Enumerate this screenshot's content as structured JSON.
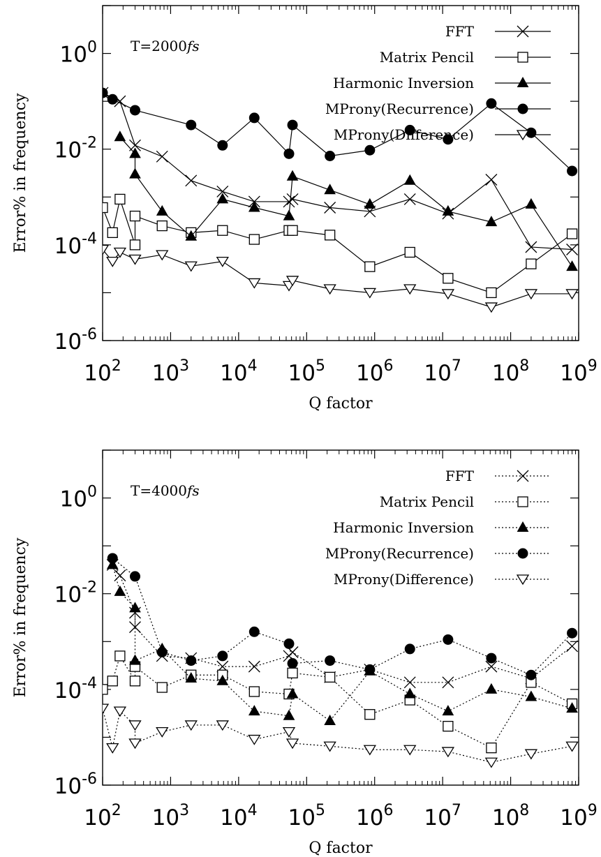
{
  "chart_data": [
    {
      "type": "line",
      "annotation": "T=2000",
      "annotation_italic": "fs",
      "xlabel": "Q factor",
      "ylabel": "Error% in frequency",
      "xscale": "log",
      "yscale": "log",
      "xlim": [
        100,
        1000000000
      ],
      "ylim": [
        1e-06,
        10
      ],
      "line_style": "solid",
      "legend_placement": "top-right",
      "x_ticks": [
        {
          "base": "10",
          "exp": "2"
        },
        {
          "base": "10",
          "exp": "3"
        },
        {
          "base": "10",
          "exp": "4"
        },
        {
          "base": "10",
          "exp": "5"
        },
        {
          "base": "10",
          "exp": "6"
        },
        {
          "base": "10",
          "exp": "7"
        },
        {
          "base": "10",
          "exp": "8"
        },
        {
          "base": "10",
          "exp": "9"
        }
      ],
      "y_ticks": [
        {
          "base": "10",
          "exp": "-6"
        },
        {
          "base": "10",
          "exp": "-4"
        },
        {
          "base": "10",
          "exp": "-2"
        },
        {
          "base": "10",
          "exp": "0"
        }
      ],
      "series": [
        {
          "name": "FFT",
          "marker": "x",
          "x": [
            100,
            180,
            300,
            750,
            2000,
            5800,
            17000,
            55000,
            62000,
            220000,
            850000,
            3300000,
            12000000,
            52000000,
            200000000,
            800000000
          ],
          "y": [
            0.15,
            0.1,
            0.012,
            0.007,
            0.0022,
            0.0013,
            0.0008,
            0.0008,
            0.0009,
            0.0006,
            0.0005,
            0.0009,
            0.00045,
            0.0023,
            9e-05,
            8e-05
          ]
        },
        {
          "name": "Matrix Pencil",
          "marker": "square",
          "x": [
            100,
            140,
            180,
            300,
            300,
            750,
            2000,
            5800,
            17000,
            55000,
            62000,
            220000,
            850000,
            3300000,
            12000000,
            52000000,
            200000000,
            800000000
          ],
          "y": [
            0.0006,
            0.00018,
            0.0009,
            0.0001,
            0.0004,
            0.00025,
            0.00018,
            0.0002,
            0.00013,
            0.0002,
            0.0002,
            0.00016,
            3.5e-05,
            7e-05,
            2e-05,
            1e-05,
            4e-05,
            0.00017
          ]
        },
        {
          "name": "Harmonic Inversion",
          "marker": "triangle-up",
          "x": [
            180,
            300,
            300,
            750,
            2000,
            5800,
            17000,
            55000,
            62000,
            220000,
            850000,
            3300000,
            12000000,
            52000000,
            200000000,
            800000000
          ],
          "y": [
            0.018,
            0.008,
            0.003,
            0.0005,
            0.00015,
            0.0009,
            0.0006,
            0.0004,
            0.0027,
            0.0014,
            0.0007,
            0.0022,
            0.0005,
            0.0003,
            0.0007,
            3.5e-05
          ]
        },
        {
          "name": "MProny(Recurrence)",
          "marker": "circle-filled",
          "x": [
            100,
            140,
            300,
            2000,
            5800,
            17000,
            55000,
            62000,
            220000,
            850000,
            3300000,
            12000000,
            52000000,
            200000000,
            800000000
          ],
          "y": [
            0.15,
            0.11,
            0.065,
            0.032,
            0.012,
            0.045,
            0.008,
            0.032,
            0.0072,
            0.0095,
            0.025,
            0.016,
            0.09,
            0.022,
            0.0035
          ]
        },
        {
          "name": "MProny(Difference)",
          "marker": "triangle-down",
          "x": [
            100,
            140,
            180,
            300,
            750,
            2000,
            5800,
            17000,
            55000,
            62000,
            220000,
            850000,
            3300000,
            12000000,
            52000000,
            200000000,
            800000000
          ],
          "y": [
            8e-05,
            4.5e-05,
            7e-05,
            5e-05,
            6.2e-05,
            3.6e-05,
            4.5e-05,
            1.6e-05,
            1.4e-05,
            1.8e-05,
            1.2e-05,
            1e-05,
            1.2e-05,
            9.5e-06,
            5e-06,
            9.5e-06,
            9.5e-06
          ]
        }
      ]
    },
    {
      "type": "line",
      "annotation": "T=4000",
      "annotation_italic": "fs",
      "xlabel": "Q factor",
      "ylabel": "Error% in frequency",
      "xscale": "log",
      "yscale": "log",
      "xlim": [
        100,
        1000000000
      ],
      "ylim": [
        1e-06,
        10
      ],
      "line_style": "dotted",
      "legend_placement": "top-right",
      "x_ticks": [
        {
          "base": "10",
          "exp": "2"
        },
        {
          "base": "10",
          "exp": "3"
        },
        {
          "base": "10",
          "exp": "4"
        },
        {
          "base": "10",
          "exp": "5"
        },
        {
          "base": "10",
          "exp": "6"
        },
        {
          "base": "10",
          "exp": "7"
        },
        {
          "base": "10",
          "exp": "8"
        },
        {
          "base": "10",
          "exp": "9"
        }
      ],
      "y_ticks": [
        {
          "base": "10",
          "exp": "-6"
        },
        {
          "base": "10",
          "exp": "-4"
        },
        {
          "base": "10",
          "exp": "-2"
        },
        {
          "base": "10",
          "exp": "0"
        }
      ],
      "series": [
        {
          "name": "FFT",
          "marker": "x",
          "x": [
            140,
            180,
            300,
            300,
            750,
            2000,
            5800,
            17000,
            55000,
            62000,
            220000,
            850000,
            3300000,
            12000000,
            52000000,
            200000000,
            800000000
          ],
          "y": [
            0.04,
            0.024,
            0.004,
            0.002,
            0.0005,
            0.00045,
            0.0003,
            0.0003,
            0.0005,
            0.0006,
            0.00018,
            0.00026,
            0.00014,
            0.00014,
            0.0003,
            0.00017,
            0.0008
          ]
        },
        {
          "name": "Matrix Pencil",
          "marker": "square",
          "x": [
            100,
            140,
            180,
            300,
            300,
            750,
            2000,
            5800,
            17000,
            55000,
            62000,
            220000,
            850000,
            3300000,
            12000000,
            52000000,
            200000000,
            800000000
          ],
          "y": [
            0.0001,
            0.00015,
            0.0005,
            0.00015,
            0.0003,
            0.00011,
            0.0002,
            0.0002,
            9e-05,
            8e-05,
            0.00022,
            0.00018,
            3e-05,
            6e-05,
            1.7e-05,
            6e-06,
            0.00014,
            5e-05
          ]
        },
        {
          "name": "Harmonic Inversion",
          "marker": "triangle-up",
          "x": [
            140,
            180,
            300,
            300,
            750,
            2000,
            5800,
            17000,
            55000,
            62000,
            220000,
            850000,
            3300000,
            12000000,
            52000000,
            200000000,
            800000000
          ],
          "y": [
            0.04,
            0.011,
            0.005,
            0.0004,
            0.0007,
            0.00017,
            0.00015,
            3.5e-05,
            2.8e-05,
            8e-05,
            2.2e-05,
            0.00024,
            8e-05,
            3.5e-05,
            0.0001,
            7e-05,
            4e-05
          ]
        },
        {
          "name": "MProny(Recurrence)",
          "marker": "circle-filled",
          "x": [
            140,
            300,
            750,
            2000,
            5800,
            17000,
            55000,
            62000,
            220000,
            850000,
            3300000,
            12000000,
            52000000,
            200000000,
            800000000
          ],
          "y": [
            0.055,
            0.023,
            0.0006,
            0.0004,
            0.0005,
            0.0016,
            0.0009,
            0.00035,
            0.0004,
            0.00026,
            0.0007,
            0.0011,
            0.00045,
            0.0002,
            0.0015
          ]
        },
        {
          "name": "MProny(Difference)",
          "marker": "triangle-down",
          "x": [
            100,
            140,
            180,
            300,
            300,
            750,
            2000,
            5800,
            17000,
            55000,
            62000,
            220000,
            850000,
            3300000,
            12000000,
            52000000,
            200000000,
            800000000
          ],
          "y": [
            4e-05,
            6e-06,
            3.5e-05,
            1.8e-05,
            7.5e-06,
            1.3e-05,
            1.8e-05,
            1.8e-05,
            9e-06,
            1.3e-05,
            7.5e-06,
            6.5e-06,
            5.5e-06,
            5.5e-06,
            5e-06,
            3e-06,
            4.5e-06,
            6.5e-06
          ]
        }
      ]
    }
  ]
}
